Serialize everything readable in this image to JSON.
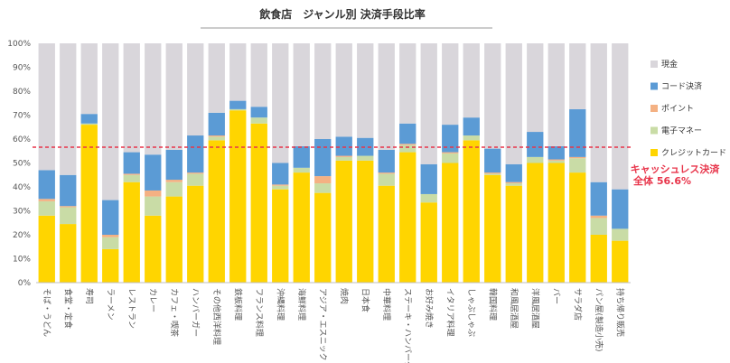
{
  "chart_data": {
    "type": "bar",
    "stacked": true,
    "percent": true,
    "title": "飲食店　ジャンル別 決済手段比率",
    "ylim": [
      0,
      100
    ],
    "yticks": [
      "0%",
      "10%",
      "20%",
      "30%",
      "40%",
      "50%",
      "60%",
      "70%",
      "80%",
      "90%",
      "100%"
    ],
    "grid": false,
    "legend_position": "right",
    "categories": [
      "そば・うどん",
      "食堂・定食",
      "寿司",
      "ラーメン",
      "レストラン",
      "カレー",
      "カフェ・喫茶",
      "ハンバーガー",
      "その他西洋料理",
      "鉄板料理",
      "フランス料理",
      "沖縄料理",
      "海鮮料理",
      "アジア・エスニック",
      "焼肉",
      "日本食",
      "中華料理",
      "ステーキ・ハンバーグ",
      "お好み焼き",
      "イタリア料理",
      "しゃぶしゃぶ",
      "韓国料理",
      "和風居酒屋",
      "洋風居酒屋",
      "バー",
      "サラダ店",
      "パン屋(製造小売)",
      "持ち帰り販売"
    ],
    "series": [
      {
        "name": "クレジットカード",
        "color": "#ffd500",
        "values": [
          28,
          24.5,
          66,
          14,
          42,
          28,
          36,
          40.5,
          59.5,
          72,
          66.5,
          39,
          46,
          37.5,
          51,
          51,
          40.5,
          54.5,
          33.5,
          50,
          59.5,
          45,
          40.5,
          50,
          50,
          46,
          20,
          17.5
        ]
      },
      {
        "name": "電子マネー",
        "color": "#c9dca6",
        "values": [
          6,
          7,
          0.5,
          5,
          3,
          8,
          6,
          5,
          1.5,
          0.5,
          2.5,
          1.5,
          2,
          4,
          1.5,
          2,
          5,
          3,
          3.5,
          4,
          2,
          0.5,
          1,
          2.5,
          1,
          6,
          7,
          5
        ]
      },
      {
        "name": "ポイント",
        "color": "#f4b183",
        "values": [
          1,
          0.5,
          0,
          1,
          0.5,
          2.5,
          1,
          0.5,
          0.5,
          0,
          0,
          0.5,
          0,
          3,
          0.5,
          0,
          0.5,
          0.5,
          0,
          0.5,
          0,
          0.5,
          0.5,
          0,
          0.5,
          0.5,
          1,
          0
        ]
      },
      {
        "name": "コード決済",
        "color": "#5b9bd5",
        "values": [
          12,
          13,
          4,
          14.5,
          9,
          15,
          12.5,
          15.5,
          9.5,
          3.5,
          4.5,
          9,
          9,
          15.5,
          8,
          7.5,
          9.5,
          8.5,
          12.5,
          11.5,
          7.5,
          10,
          7.5,
          10.5,
          5.5,
          20,
          14,
          16.5
        ]
      },
      {
        "name": "現金",
        "color": "#d9d6db",
        "values": [
          53,
          55,
          29.5,
          65.5,
          45.5,
          46.5,
          44.5,
          38.5,
          29,
          24,
          26.5,
          50,
          43,
          40,
          39,
          39.5,
          44.5,
          33.5,
          50.5,
          34,
          31,
          44,
          50.5,
          37,
          43,
          27.5,
          58,
          61
        ]
      }
    ],
    "reference_line": {
      "value": 56.6,
      "color": "#e8344a",
      "label_line1": "キャッシュレス決済",
      "label_line2": "全体 56.6%"
    }
  }
}
